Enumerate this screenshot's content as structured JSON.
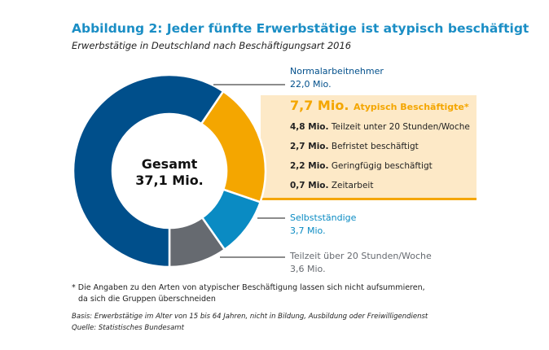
{
  "chart_data": {
    "type": "pie",
    "title": "Abbildung 2: Jeder fünfte Erwerbstätige ist atypisch beschäftigt",
    "subtitle": "Erwerbstätige in Deutschland nach Beschäftigungsart 2016",
    "center_label": {
      "line1": "Gesamt",
      "line2": "37,1 Mio."
    },
    "total": 37.1,
    "slices": [
      {
        "name": "Atypisch Beschäftigte*",
        "value": 7.7,
        "label": "7,7 Mio.",
        "color": "#f4a600"
      },
      {
        "name": "Selbstständige",
        "value": 3.7,
        "label": "3,7 Mio.",
        "color": "#0a8bc3"
      },
      {
        "name": "Teilzeit über 20 Stunden/Woche",
        "value": 3.6,
        "label": "3,6 Mio.",
        "color": "#666a70"
      },
      {
        "name": "Normalarbeitnehmer",
        "value": 22.0,
        "label": "22,0 Mio.",
        "color": "#004f8b"
      }
    ],
    "atypical_breakdown": [
      {
        "value": "4,8 Mio.",
        "name": "Teilzeit unter 20 Stunden/Woche"
      },
      {
        "value": "2,7 Mio.",
        "name": "Befristet beschäftigt"
      },
      {
        "value": "2,2 Mio.",
        "name": "Geringfügig beschäftigt"
      },
      {
        "value": "0,7 Mio.",
        "name": "Zeitarbeit"
      }
    ]
  },
  "footnote": {
    "line1": "* Die Angaben zu den Arten von atypischer Beschäftigung lassen sich nicht aufsummieren,",
    "line2": "da sich die Gruppen überschneiden"
  },
  "basis": "Basis: Erwerbstätige im Alter von 15 bis 64 Jahren, nicht in Bildung, Ausbildung oder Freiwilligendienst",
  "source": "Quelle: Statistisches Bundesamt"
}
